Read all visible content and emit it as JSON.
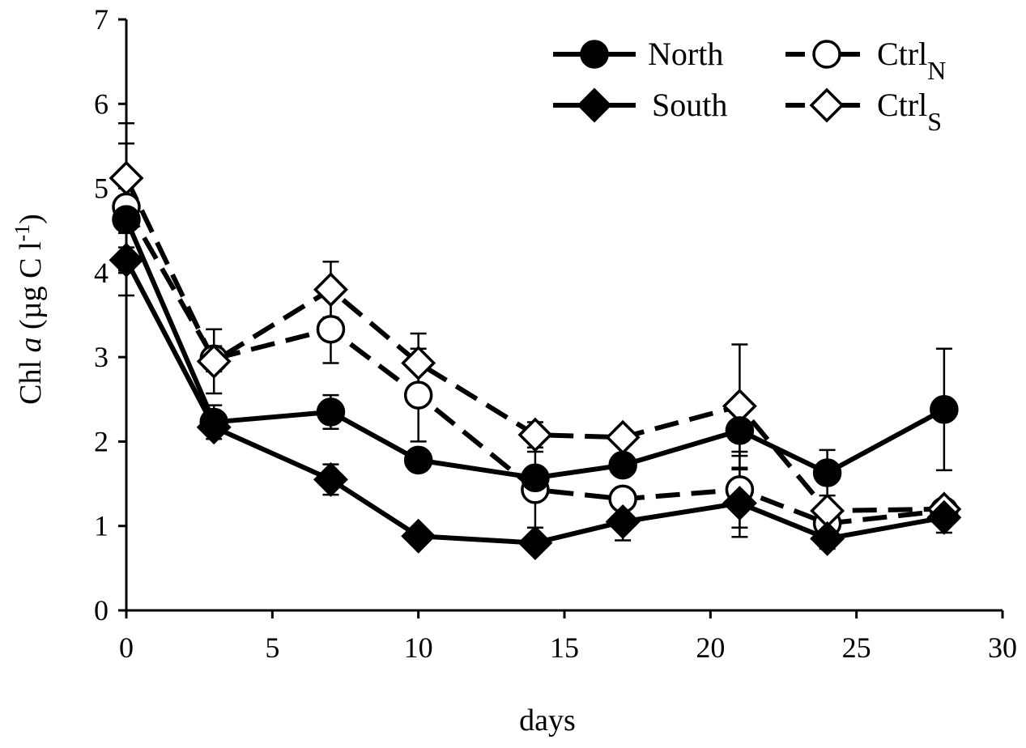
{
  "chart_data": {
    "type": "line",
    "title": "",
    "xlabel": "days",
    "ylabel": {
      "prefix": "Chl ",
      "italic": "a",
      "suffix": " (µg C l",
      "sup": "-1",
      "close": ")"
    },
    "xlim": [
      0,
      30
    ],
    "ylim": [
      0,
      7
    ],
    "xticks": [
      0,
      5,
      10,
      15,
      20,
      25,
      30
    ],
    "yticks": [
      0,
      1,
      2,
      3,
      4,
      5,
      6,
      7
    ],
    "grid": false,
    "legend_position": "top-right",
    "series": [
      {
        "name": "North",
        "legend_main": "North",
        "legend_sub": "",
        "marker": "circle",
        "filled": true,
        "dashed": false,
        "x": [
          0,
          3,
          7,
          10,
          14,
          17,
          21,
          24,
          28
        ],
        "y": [
          4.63,
          2.23,
          2.35,
          1.78,
          1.57,
          1.72,
          2.13,
          1.63,
          2.38
        ],
        "err": [
          0.9,
          0.2,
          0.2,
          0.1,
          0.1,
          0.1,
          0.3,
          0.27,
          0.72
        ]
      },
      {
        "name": "South",
        "legend_main": "South",
        "legend_sub": "",
        "marker": "diamond",
        "filled": true,
        "dashed": false,
        "x": [
          0,
          3,
          7,
          10,
          14,
          17,
          21,
          24,
          28
        ],
        "y": [
          4.15,
          2.17,
          1.55,
          0.88,
          0.8,
          1.05,
          1.27,
          0.85,
          1.1
        ],
        "err": [
          0.15,
          0.1,
          0.18,
          0.1,
          0.08,
          0.22,
          0.4,
          0.12,
          0.18
        ]
      },
      {
        "name": "CtrlN",
        "legend_main": "Ctrl",
        "legend_sub": "N",
        "marker": "circle",
        "filled": false,
        "dashed": true,
        "x": [
          0,
          3,
          7,
          10,
          14,
          17,
          21,
          24,
          28
        ],
        "y": [
          4.78,
          2.98,
          3.33,
          2.55,
          1.43,
          1.32,
          1.43,
          1.03,
          1.18
        ],
        "err": [
          0.75,
          0.15,
          0.4,
          0.55,
          0.45,
          0.1,
          0.45,
          0.05,
          0.05
        ]
      },
      {
        "name": "CtrlS",
        "legend_main": "Ctrl",
        "legend_sub": "S",
        "marker": "diamond",
        "filled": false,
        "dashed": true,
        "x": [
          0,
          3,
          7,
          10,
          14,
          17,
          21,
          24,
          28
        ],
        "y": [
          5.12,
          2.95,
          3.8,
          2.93,
          2.08,
          2.05,
          2.42,
          1.18,
          1.2
        ],
        "err": [
          0.65,
          0.38,
          0.33,
          0.35,
          0.15,
          0.1,
          0.73,
          0.1,
          0.05
        ]
      }
    ]
  }
}
